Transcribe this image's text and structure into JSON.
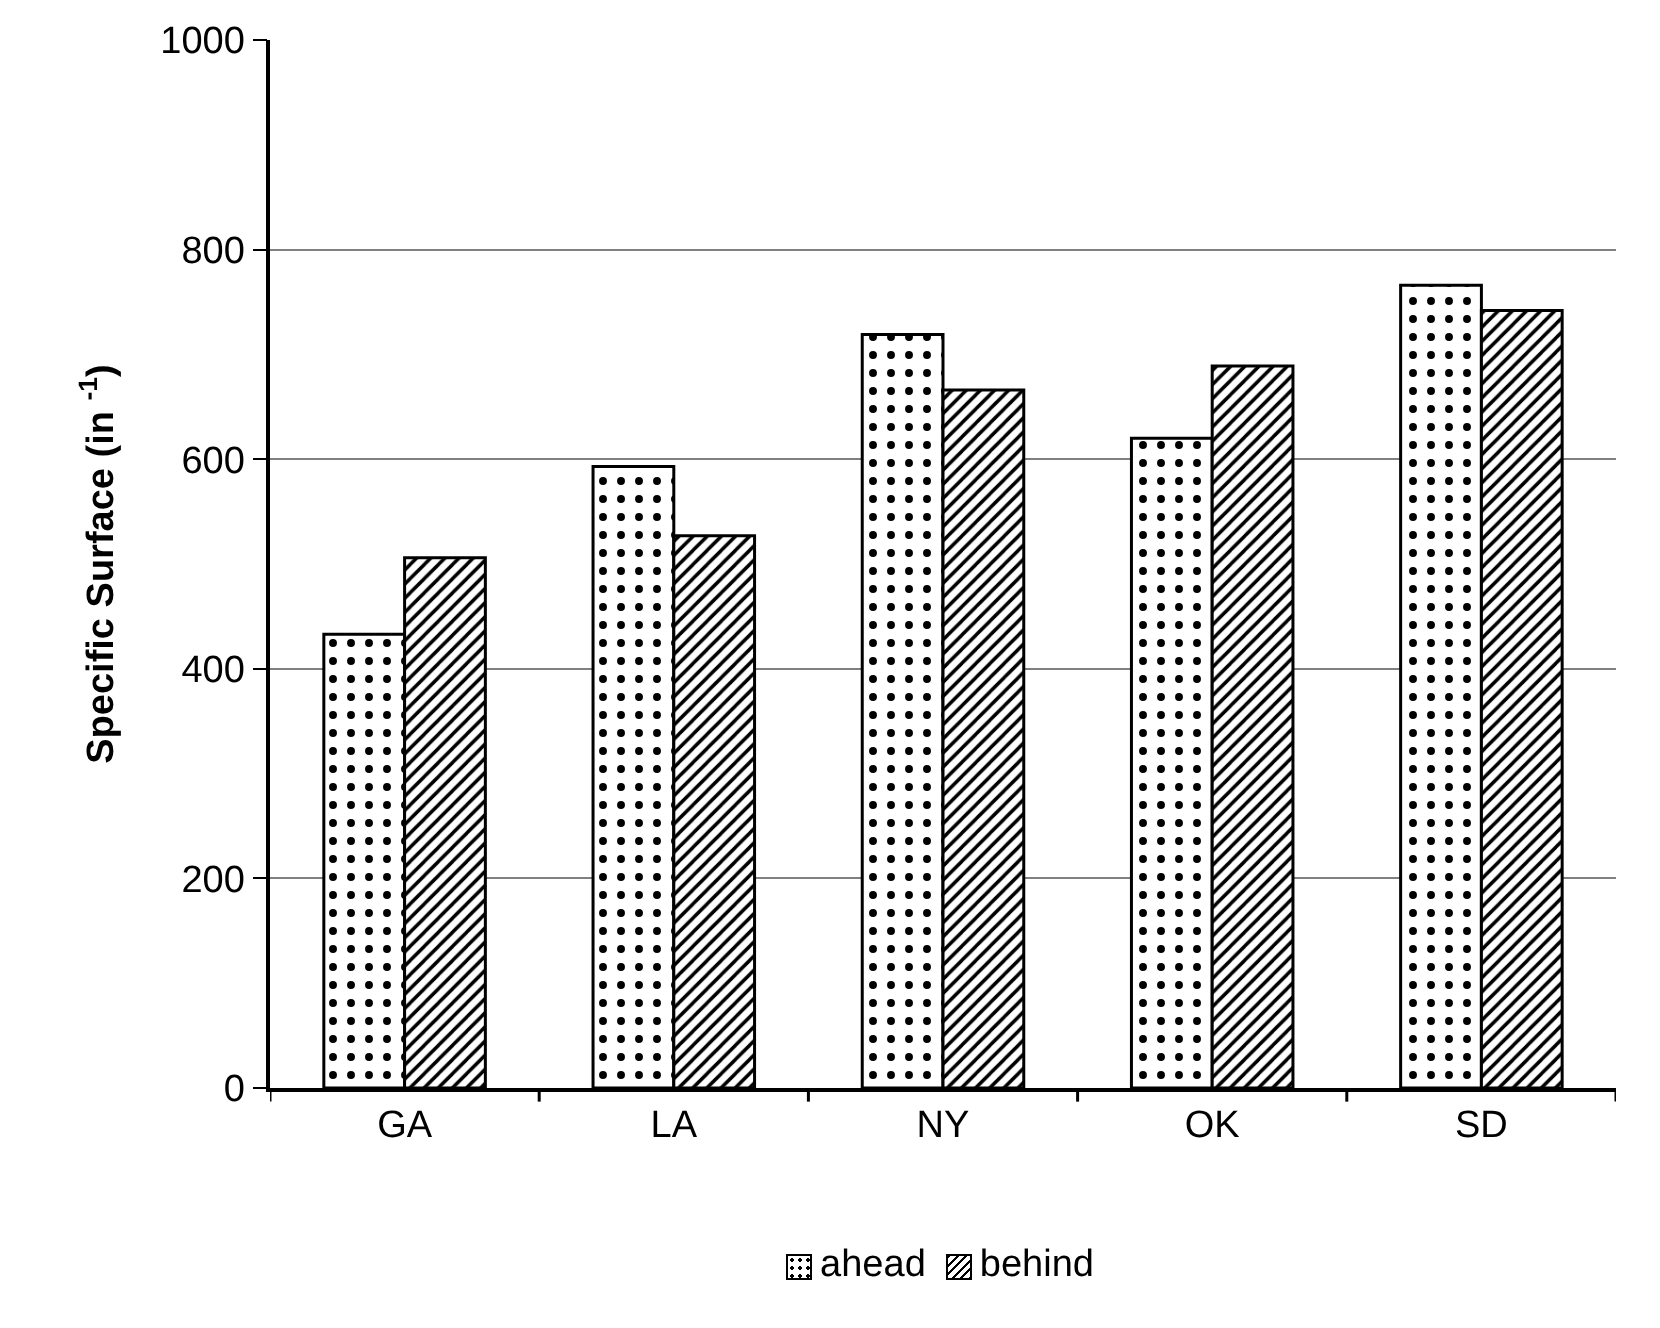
{
  "chart_data": {
    "type": "bar",
    "ylabel": "Specific Surface (in $^{-1}$)",
    "categories": [
      "GA",
      "LA",
      "NY",
      "OK",
      "SD"
    ],
    "series": [
      {
        "name": "ahead",
        "color": "#000000",
        "values": [
          433,
          593,
          719,
          620,
          766
        ]
      },
      {
        "name": "behind",
        "color": "#000000",
        "values": [
          506,
          527,
          666,
          689,
          742
        ]
      }
    ],
    "ylim": [
      0,
      1000
    ],
    "yticks": [
      0,
      200,
      400,
      600,
      800,
      1000
    ],
    "grid": "y",
    "legend": "bottom"
  }
}
